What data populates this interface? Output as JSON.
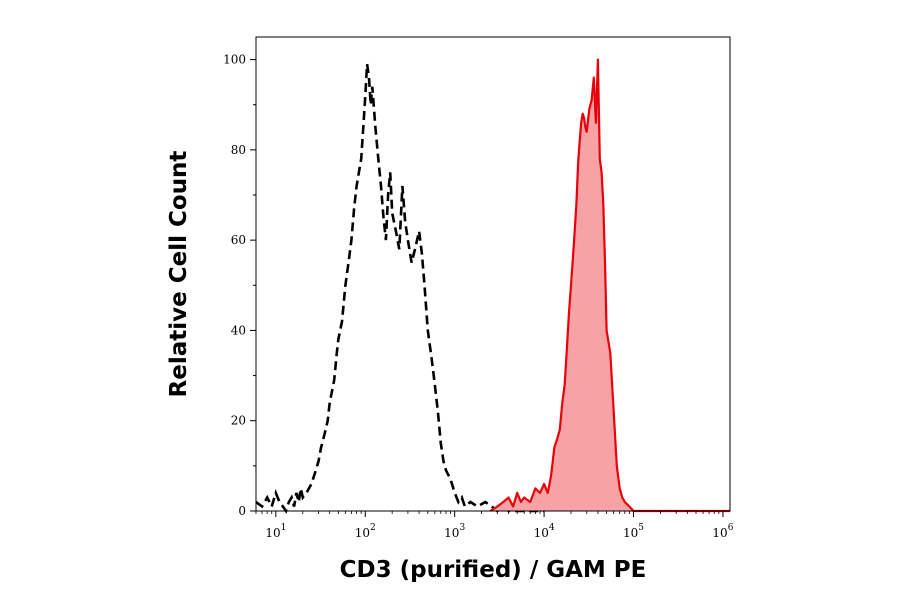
{
  "chart_data": {
    "type": "area",
    "xlabel": "CD3 (purified) / GAM PE",
    "ylabel": "Relative Cell Count",
    "xscale": "log",
    "xlim": [
      6,
      1200000
    ],
    "ylim": [
      0,
      105
    ],
    "x_ticks": [
      {
        "value": 10,
        "base": "10",
        "exp": "1"
      },
      {
        "value": 100,
        "base": "10",
        "exp": "2"
      },
      {
        "value": 1000,
        "base": "10",
        "exp": "3"
      },
      {
        "value": 10000,
        "base": "10",
        "exp": "4"
      },
      {
        "value": 100000,
        "base": "10",
        "exp": "5"
      },
      {
        "value": 1000000,
        "base": "10",
        "exp": "6"
      }
    ],
    "y_ticks": [
      0,
      20,
      40,
      60,
      80,
      100
    ],
    "grid": false,
    "series": [
      {
        "style": "dashed-outline",
        "color": "#000000",
        "x": [
          6,
          7,
          8,
          9,
          10,
          11,
          12,
          13,
          14,
          15,
          16,
          17,
          18,
          19,
          20,
          22,
          25,
          28,
          30,
          32,
          35,
          38,
          40,
          45,
          48,
          50,
          55,
          60,
          65,
          70,
          75,
          80,
          85,
          90,
          95,
          100,
          105,
          110,
          115,
          120,
          130,
          140,
          150,
          160,
          170,
          180,
          190,
          200,
          220,
          240,
          260,
          280,
          300,
          330,
          360,
          400,
          430,
          460,
          500,
          550,
          600,
          650,
          700,
          750,
          800,
          900,
          1000,
          1100,
          1200,
          1300,
          1500,
          1800,
          2200,
          2600,
          3000,
          3500,
          4000,
          6000,
          10000
        ],
        "y": [
          2,
          1,
          3,
          1,
          4,
          2,
          1,
          0,
          2,
          3,
          1,
          4,
          2,
          5,
          3,
          4,
          6,
          9,
          11,
          14,
          17,
          20,
          24,
          29,
          35,
          38,
          42,
          50,
          55,
          60,
          67,
          72,
          75,
          78,
          85,
          92,
          99,
          96,
          90,
          94,
          85,
          78,
          72,
          65,
          60,
          70,
          75,
          66,
          62,
          58,
          72,
          64,
          60,
          55,
          58,
          62,
          57,
          50,
          40,
          34,
          28,
          22,
          15,
          11,
          9,
          7,
          4,
          2,
          3,
          1,
          2,
          1,
          2,
          1,
          0,
          1,
          0,
          0,
          0
        ]
      },
      {
        "style": "filled",
        "color": "#e8000b",
        "fill": "#f7a3a6",
        "x": [
          2500,
          3000,
          3500,
          4000,
          4500,
          5000,
          5500,
          6000,
          7000,
          8000,
          9000,
          10000,
          11000,
          12000,
          13000,
          14000,
          15000,
          16000,
          17000,
          18000,
          19000,
          20000,
          21000,
          22000,
          23000,
          24000,
          25000,
          26000,
          27000,
          28000,
          29000,
          30000,
          32000,
          34000,
          36000,
          38000,
          40000,
          42000,
          44000,
          46000,
          48000,
          50000,
          55000,
          60000,
          65000,
          70000,
          75000,
          80000,
          90000,
          100000,
          130000,
          200000,
          500000,
          1200000
        ],
        "y": [
          0,
          1,
          2,
          3,
          1,
          4,
          2,
          3,
          2,
          5,
          4,
          6,
          4,
          8,
          14,
          16,
          18,
          24,
          28,
          36,
          44,
          50,
          56,
          62,
          68,
          77,
          82,
          86,
          88,
          87,
          85,
          84,
          89,
          91,
          96,
          86,
          100,
          78,
          75,
          68,
          55,
          40,
          35,
          22,
          10,
          5,
          3,
          2,
          1,
          0,
          0,
          0,
          0,
          0
        ]
      }
    ]
  }
}
